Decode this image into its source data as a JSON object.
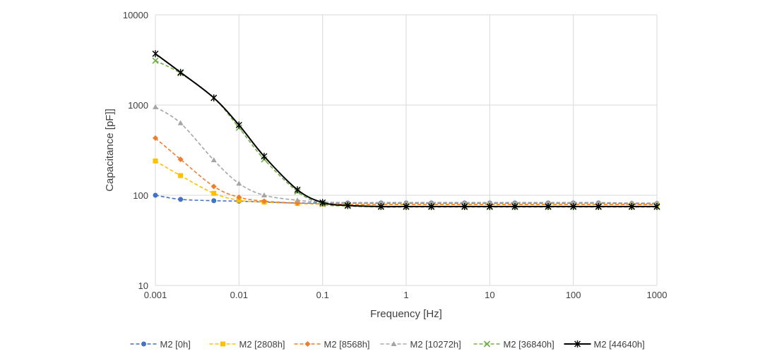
{
  "chart_data": {
    "type": "line",
    "title": "",
    "xlabel": "Frequency [Hz]",
    "ylabel": "Capacitance [pF]]",
    "xscale": "log",
    "yscale": "log",
    "xlim": [
      0.001,
      1000
    ],
    "ylim": [
      10,
      10000
    ],
    "x_ticks": [
      0.001,
      0.01,
      0.1,
      1,
      10,
      100,
      1000
    ],
    "x_tick_labels": [
      "0.001",
      "0.01",
      "0.1",
      "1",
      "10",
      "100",
      "1000"
    ],
    "y_ticks": [
      10,
      100,
      1000,
      10000
    ],
    "y_tick_labels": [
      "10",
      "100",
      "1000",
      "10000"
    ],
    "grid": true,
    "legend_position": "bottom",
    "x": [
      0.001,
      0.002,
      0.005,
      0.01,
      0.02,
      0.05,
      0.1,
      0.2,
      0.5,
      1,
      2,
      5,
      10,
      20,
      50,
      100,
      200,
      500,
      1000
    ],
    "series": [
      {
        "name": "M2 [0h]",
        "color": "#4472C4",
        "line_style": "dashed",
        "marker": "circle",
        "values": [
          100,
          90,
          87,
          86,
          84,
          82,
          82,
          82,
          82,
          82,
          82,
          82,
          82,
          82,
          82,
          82,
          82,
          81,
          81
        ]
      },
      {
        "name": "M2 [2808h]",
        "color": "#FFC000",
        "line_style": "dashed",
        "marker": "square",
        "values": [
          240,
          165,
          105,
          88,
          84,
          81,
          80,
          79,
          79,
          79,
          79,
          79,
          79,
          79,
          79,
          79,
          79,
          79,
          79
        ]
      },
      {
        "name": "M2 [8568h]",
        "color": "#ED7D31",
        "line_style": "dashed",
        "marker": "diamond",
        "values": [
          430,
          250,
          125,
          95,
          86,
          82,
          80,
          79,
          79,
          79,
          79,
          79,
          79,
          79,
          79,
          79,
          79,
          79,
          79
        ]
      },
      {
        "name": "M2 [10272h]",
        "color": "#A5A5A5",
        "line_style": "dashed",
        "marker": "triangle",
        "values": [
          950,
          630,
          245,
          135,
          100,
          88,
          84,
          83,
          83,
          83,
          83,
          83,
          83,
          83,
          83,
          83,
          83,
          82,
          82
        ]
      },
      {
        "name": "M2 [36840h]",
        "color": "#70AD47",
        "line_style": "dashed",
        "marker": "x",
        "values": [
          3100,
          2250,
          1200,
          560,
          250,
          110,
          80,
          76,
          74,
          74,
          74,
          74,
          74,
          74,
          74,
          74,
          74,
          74,
          74
        ]
      },
      {
        "name": "M2 [44640h]",
        "color": "#000000",
        "line_style": "solid",
        "marker": "star",
        "values": [
          3700,
          2300,
          1200,
          600,
          270,
          115,
          83,
          77,
          75,
          75,
          75,
          75,
          75,
          75,
          75,
          75,
          75,
          75,
          75
        ]
      }
    ]
  }
}
